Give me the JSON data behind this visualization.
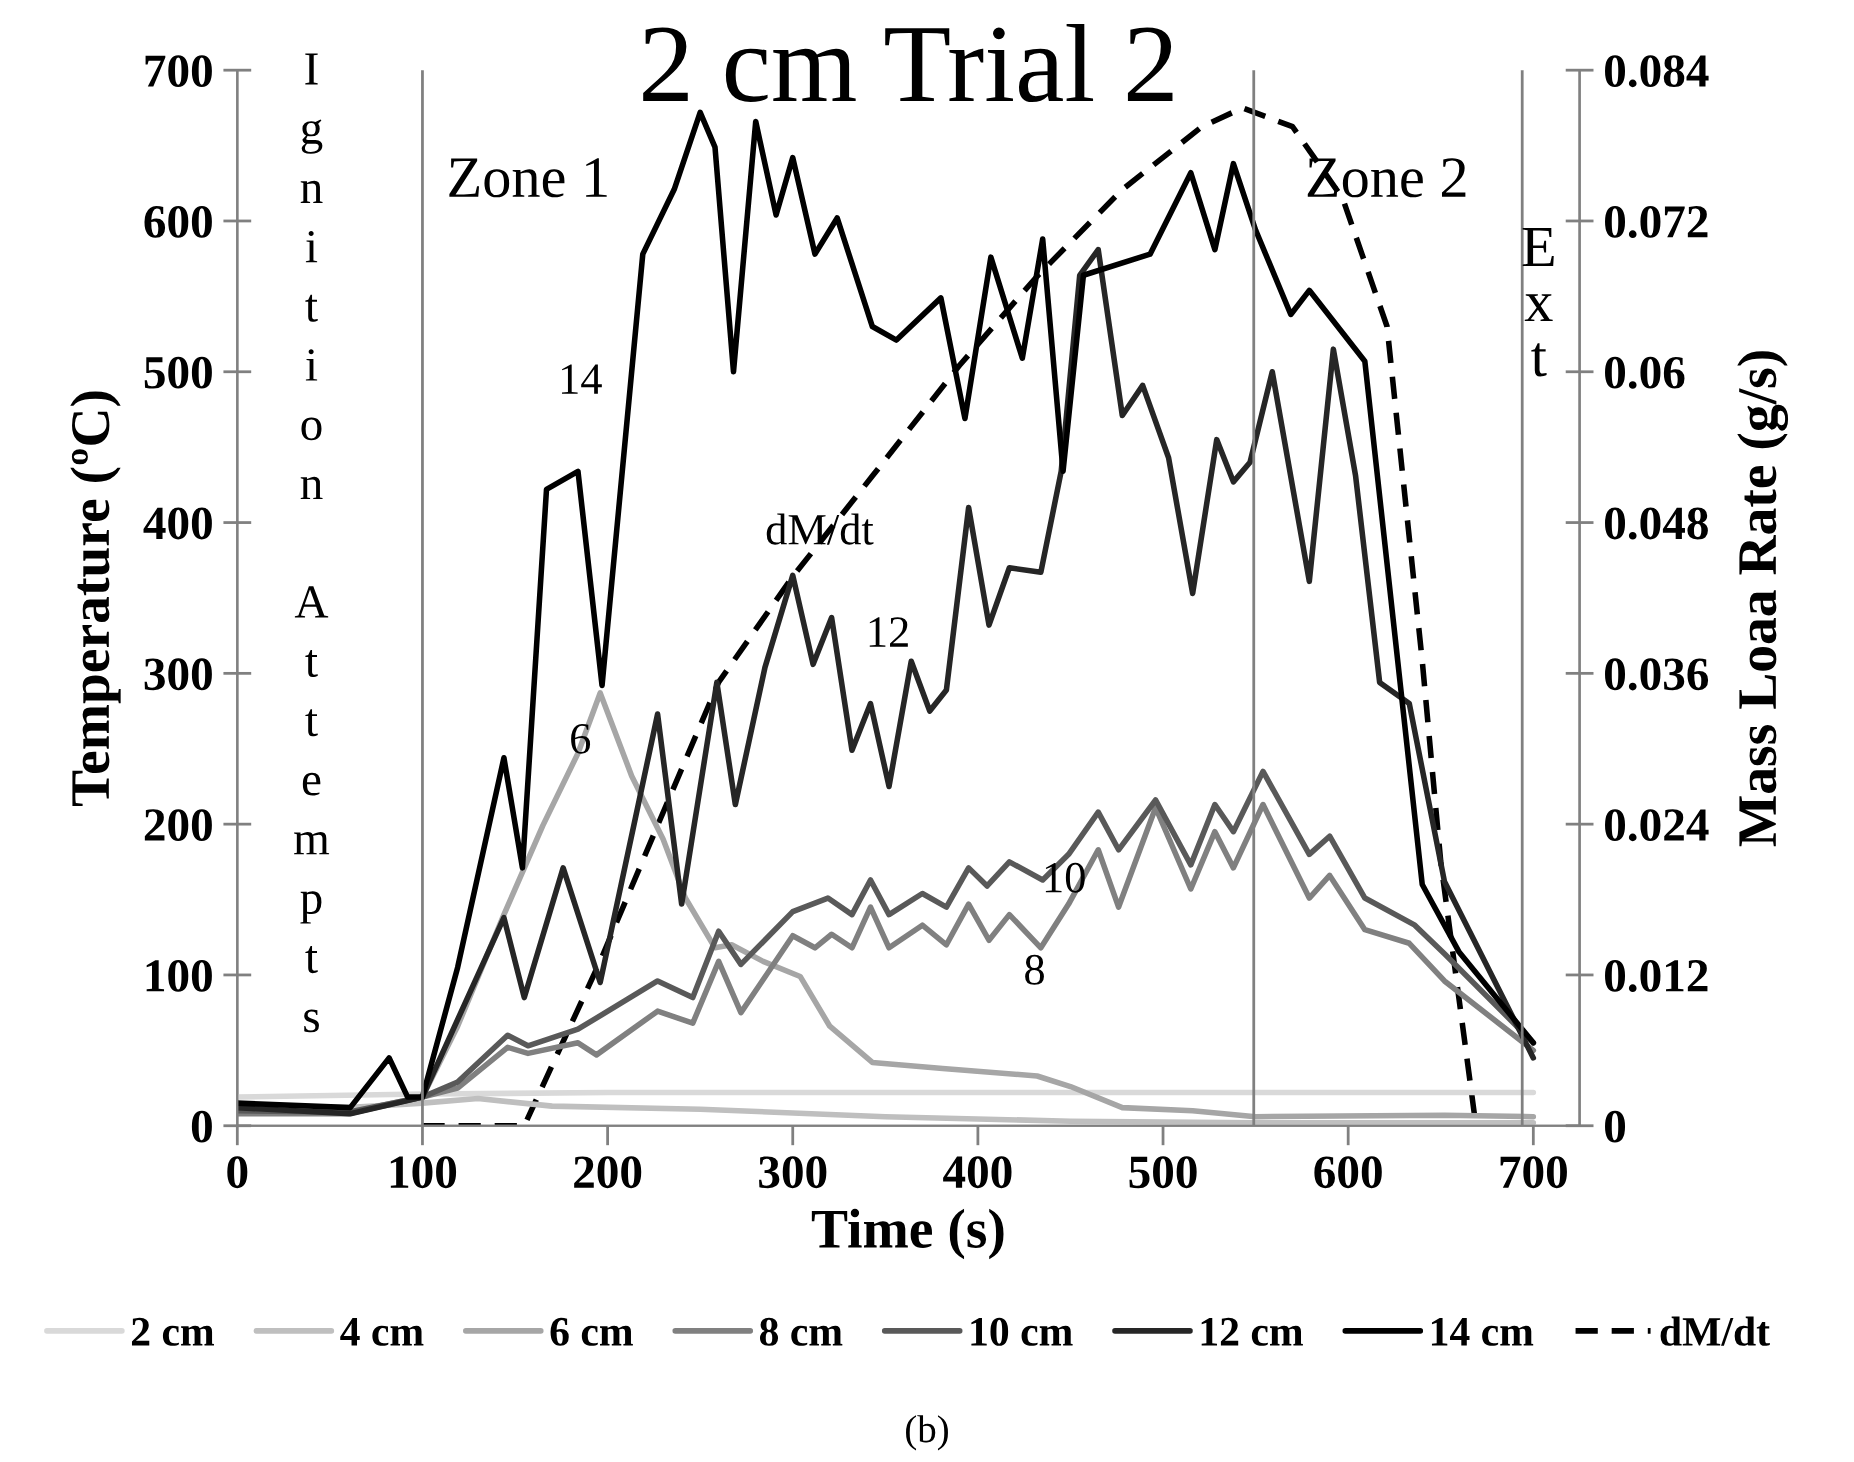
{
  "chart_data": {
    "type": "line",
    "title": "2 cm Trial 2",
    "xlabel": "Time (s)",
    "ylabel": "Temperature (ºC)",
    "y2label": "Mass Loaa Rate (g/s)",
    "xlim": [
      0,
      725
    ],
    "xticks": [
      0,
      100,
      200,
      300,
      400,
      500,
      600,
      700
    ],
    "ylim": [
      0,
      700
    ],
    "yticks": [
      0,
      100,
      200,
      300,
      400,
      500,
      600,
      700
    ],
    "y2lim": [
      0,
      0.084
    ],
    "y2ticks": [
      0,
      0.012,
      0.024,
      0.036,
      0.048,
      0.06,
      0.072,
      0.084
    ],
    "grid": false,
    "legend": "bottom",
    "marker": "none",
    "series": [
      {
        "name": "2 cm",
        "color": "#d9d9d9",
        "x": [
          0,
          100,
          200,
          300,
          400,
          500,
          600,
          700
        ],
        "values": [
          19,
          21,
          22,
          22,
          22,
          22,
          22,
          22
        ]
      },
      {
        "name": "4 cm",
        "color": "#bfbfbf",
        "x": [
          0,
          60,
          100,
          130,
          170,
          250,
          350,
          450,
          550,
          700
        ],
        "values": [
          13,
          12,
          15,
          18,
          13,
          11,
          6,
          3,
          2,
          2
        ]
      },
      {
        "name": "6 cm",
        "color": "#a6a6a6",
        "x": [
          0,
          60,
          100,
          119,
          144,
          165,
          184,
          196,
          213,
          230,
          242,
          258,
          267,
          284,
          304,
          320,
          343,
          381,
          432,
          450,
          478,
          516,
          550,
          652,
          700
        ],
        "values": [
          10,
          9,
          19,
          66,
          140,
          199,
          247,
          287,
          232,
          190,
          151,
          118,
          120,
          109,
          99,
          66,
          42,
          38,
          33,
          26,
          12,
          10,
          6,
          7,
          6
        ]
      },
      {
        "name": "8 cm",
        "color": "#808080",
        "x": [
          0,
          60,
          100,
          119,
          146,
          157,
          184,
          194,
          227,
          246,
          260,
          272,
          300,
          312,
          321,
          332,
          342,
          352,
          370,
          383,
          395,
          406,
          417,
          434,
          449,
          465,
          476,
          496,
          515,
          528,
          538,
          554,
          579,
          590,
          609,
          633,
          652,
          700
        ],
        "values": [
          8,
          8,
          19,
          25,
          52,
          48,
          55,
          47,
          76,
          68,
          109,
          75,
          126,
          118,
          127,
          118,
          145,
          118,
          133,
          120,
          147,
          123,
          140,
          118,
          147,
          183,
          145,
          211,
          157,
          195,
          171,
          213,
          151,
          166,
          130,
          121,
          96,
          50
        ]
      },
      {
        "name": "10 cm",
        "color": "#595959",
        "x": [
          0,
          60,
          100,
          119,
          146,
          157,
          184,
          227,
          246,
          260,
          272,
          300,
          319,
          332,
          342,
          352,
          370,
          383,
          395,
          405,
          417,
          435,
          449,
          465,
          476,
          496,
          515,
          528,
          538,
          554,
          579,
          590,
          609,
          636,
          652,
          700
        ],
        "values": [
          10,
          9,
          19,
          29,
          60,
          53,
          64,
          96,
          85,
          129,
          107,
          142,
          151,
          140,
          163,
          140,
          154,
          145,
          171,
          159,
          175,
          163,
          180,
          208,
          183,
          216,
          173,
          213,
          195,
          235,
          180,
          192,
          151,
          133,
          114,
          55
        ]
      },
      {
        "name": "12 cm",
        "color": "#262626",
        "x": [
          0,
          61,
          100,
          144,
          155,
          176,
          196,
          215,
          227,
          240,
          259,
          269,
          285,
          300,
          311,
          321,
          332,
          342,
          352,
          364,
          374,
          383,
          395,
          406,
          417,
          434,
          445,
          455,
          465,
          478,
          489,
          503,
          516,
          529,
          538,
          547,
          559,
          579,
          592,
          604,
          617,
          633,
          652,
          700
        ],
        "values": [
          12,
          8,
          19,
          138,
          85,
          171,
          95,
          204,
          273,
          147,
          294,
          213,
          304,
          365,
          306,
          337,
          249,
          280,
          225,
          308,
          275,
          289,
          410,
          332,
          370,
          367,
          434,
          564,
          581,
          471,
          491,
          443,
          353,
          455,
          427,
          440,
          500,
          361,
          515,
          431,
          294,
          280,
          162,
          45
        ]
      },
      {
        "name": "14 cm",
        "color": "#000000",
        "x": [
          0,
          61,
          82,
          92,
          100,
          119,
          144,
          154,
          167,
          184,
          197,
          219,
          236,
          250,
          258,
          268,
          280,
          291,
          300,
          312,
          324,
          343,
          356,
          380,
          393,
          407,
          424,
          435,
          446,
          457,
          493,
          515,
          528,
          538,
          550,
          569,
          579,
          609,
          640,
          660,
          700
        ],
        "values": [
          15,
          12,
          45,
          19,
          19,
          105,
          244,
          171,
          422,
          434,
          292,
          578,
          621,
          672,
          649,
          500,
          666,
          604,
          642,
          578,
          602,
          530,
          521,
          549,
          469,
          576,
          509,
          588,
          434,
          564,
          578,
          632,
          581,
          638,
          594,
          538,
          554,
          507,
          160,
          115,
          55
        ]
      },
      {
        "name": "dM/dt",
        "color": "#000000",
        "axis": "y2",
        "line_style": "dashed",
        "x": [
          100,
          155,
          196,
          227,
          260,
          300,
          343,
          390,
          432,
          478,
          521,
          543,
          570,
          597,
          621,
          640,
          650,
          669
        ],
        "values": [
          0,
          0,
          0.0131,
          0.0239,
          0.0353,
          0.0437,
          0.0517,
          0.0605,
          0.0676,
          0.0745,
          0.0795,
          0.081,
          0.0795,
          0.0738,
          0.0636,
          0.037,
          0.021,
          0
        ]
      }
    ],
    "ref_lines": [
      {
        "axis": "x",
        "value": 100,
        "color": "#808080"
      },
      {
        "axis": "x",
        "value": 549,
        "color": "#808080"
      },
      {
        "axis": "x",
        "value": 694,
        "color": "#808080"
      }
    ],
    "annotations": [
      "Ignition Attempts",
      "Zone 1",
      "Zone 2",
      "Ext",
      "14",
      "6",
      "12",
      "10",
      "8",
      "dM/dt",
      "(b)"
    ]
  }
}
